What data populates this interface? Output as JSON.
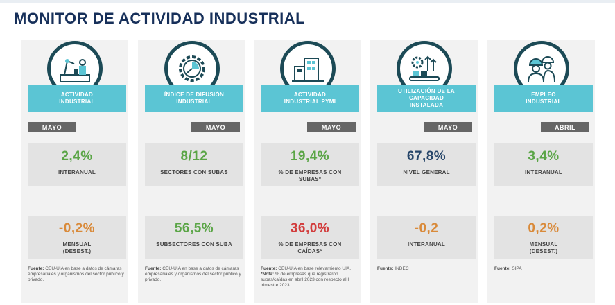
{
  "header": {
    "title": "MONITOR DE ACTIVIDAD INDUSTRIAL"
  },
  "colors": {
    "title": "#17305a",
    "label_bg": "#5bc5d4",
    "month_bg": "#666666",
    "green": "#5aa546",
    "navy": "#27466a",
    "orange": "#d98a3a",
    "red": "#d23b3b"
  },
  "columns": [
    {
      "icon": "factory-robot-workers-icon",
      "label": "ACTIVIDAD\nINDUSTRIAL",
      "month": "MAYO",
      "top_value": "2,4%",
      "top_sub": "INTERANUAL",
      "bottom_value": "-0,2%",
      "bottom_sub": "MENSUAL\n(DESEST.)",
      "source_label": "Fuente:",
      "source_text": " CEU-UIA en base a datos de cámaras empresariales y organismos del sector público y privado."
    },
    {
      "icon": "gear-chart-icon",
      "label": "ÍNDICE DE DIFUSIÓN\nINDUSTRIAL",
      "month": "MAYO",
      "top_value": "8/12",
      "top_sub": "SECTORES CON SUBAS",
      "bottom_value": "56,5%",
      "bottom_sub": "SUBSECTORES CON SUBA",
      "source_label": "Fuente:",
      "source_text": " CEU-UIA en base a datos de cámaras empresariales y organismos del sector público y privado."
    },
    {
      "icon": "factory-building-icon",
      "label": "ACTIVIDAD\nINDUSTRIAL PYMI",
      "month": "MAYO",
      "top_value": "19,4%",
      "top_sub": "% DE EMPRESAS CON\nSUBAS*",
      "bottom_value": "36,0%",
      "bottom_sub": "% DE EMPRESAS CON\nCAÍDAS*",
      "source_label": "Fuente:",
      "source_text": " CEU-UIA en base relevamiento UIA.",
      "note_label": "*Nota:",
      "note_text": " % de empresas que registraron subas/caídas en abril 2023 con respecto al I trimestre 2023."
    },
    {
      "icon": "capacity-gear-conveyor-icon",
      "label": "UTILIZACIÓN DE LA\nCAPACIDAD\nINSTALADA",
      "month": "MAYO",
      "top_value": "67,8%",
      "top_sub": "NIVEL GENERAL",
      "bottom_value": "-0,2",
      "bottom_sub": "INTERANUAL",
      "source_label": "Fuente:",
      "source_text": " INDEC"
    },
    {
      "icon": "workers-helmet-icon",
      "label": "EMPLEO\nINDUSTRIAL",
      "month": "ABRIL",
      "top_value": "3,4%",
      "top_sub": "INTERANUAL",
      "bottom_value": "0,2%",
      "bottom_sub": "MENSUAL\n(DESEST.)",
      "source_label": "Fuente:",
      "source_text": " SIPA"
    }
  ]
}
